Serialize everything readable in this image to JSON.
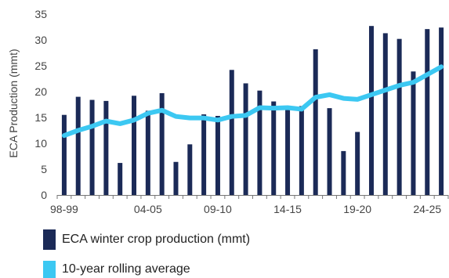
{
  "chart_data": {
    "type": "bar",
    "title": "",
    "ylabel": "ECA Production (mmt)",
    "xlabel": "",
    "ylim": [
      0,
      35
    ],
    "yticks": [
      0,
      5,
      10,
      15,
      20,
      25,
      30,
      35
    ],
    "grid": false,
    "legend_position": "bottom-left",
    "tick_labels": [
      "98-99",
      "04-05",
      "09-10",
      "14-15",
      "19-20",
      "24-25"
    ],
    "categories": [
      "98-99",
      "99-00",
      "00-01",
      "01-02",
      "02-03",
      "03-04",
      "04-05",
      "05-06",
      "06-07",
      "07-08",
      "08-09",
      "09-10",
      "10-11",
      "11-12",
      "12-13",
      "13-14",
      "14-15",
      "15-16",
      "16-17",
      "17-18",
      "18-19",
      "19-20",
      "20-21",
      "21-22",
      "22-23",
      "23-24",
      "24-25",
      "25-26"
    ],
    "series": [
      {
        "name": "ECA winter crop production (mmt)",
        "type": "bar",
        "color": "#1b2a57",
        "values": [
          15.5,
          19.0,
          18.4,
          18.2,
          6.2,
          19.2,
          16.3,
          19.7,
          6.4,
          9.8,
          15.6,
          15.3,
          24.2,
          21.6,
          20.2,
          18.1,
          17.1,
          17.2,
          28.2,
          16.8,
          8.5,
          12.2,
          32.7,
          31.3,
          30.2,
          23.9,
          32.1,
          32.4
        ]
      },
      {
        "name": "10-year rolling average",
        "type": "line",
        "color": "#3cc8f2",
        "values": [
          11.5,
          12.5,
          13.3,
          14.3,
          13.8,
          14.5,
          15.8,
          16.4,
          15.2,
          14.9,
          14.9,
          14.5,
          15.2,
          15.4,
          16.9,
          16.8,
          16.9,
          16.6,
          18.9,
          19.4,
          18.7,
          18.5,
          19.4,
          20.3,
          21.2,
          21.8,
          23.3,
          24.8
        ]
      }
    ]
  }
}
